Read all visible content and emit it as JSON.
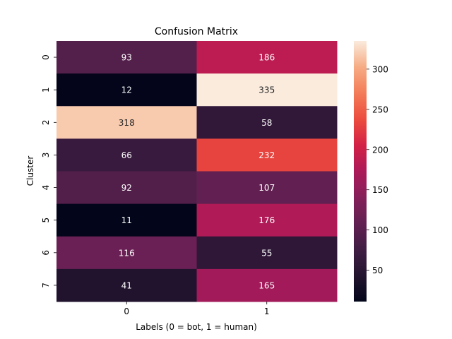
{
  "chart_data": {
    "type": "heatmap",
    "title": "Confusion Matrix",
    "xlabel": "Labels (0 = bot, 1 = human)",
    "ylabel": "Cluster",
    "x_categories": [
      "0",
      "1"
    ],
    "y_categories": [
      "0",
      "1",
      "2",
      "3",
      "4",
      "5",
      "6",
      "7"
    ],
    "values": [
      [
        93,
        186
      ],
      [
        12,
        335
      ],
      [
        318,
        58
      ],
      [
        66,
        232
      ],
      [
        92,
        107
      ],
      [
        11,
        176
      ],
      [
        116,
        55
      ],
      [
        41,
        165
      ]
    ],
    "colormap": "rocket",
    "colorbar": {
      "vmin": 11,
      "vmax": 335,
      "ticks": [
        50,
        100,
        150,
        200,
        250,
        300
      ]
    },
    "grid": false,
    "legend": "colorbar-right"
  }
}
